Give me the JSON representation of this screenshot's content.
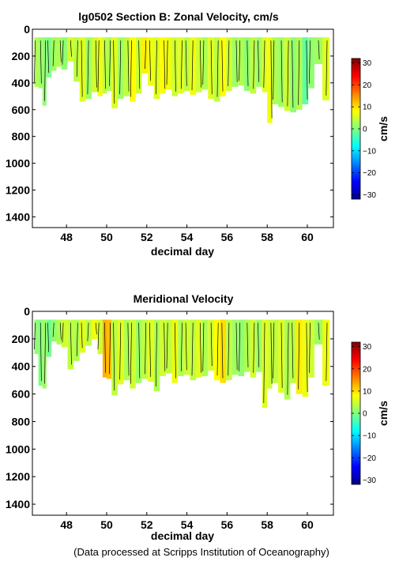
{
  "footer": "(Data processed at Scripps Institution of Oceanography)",
  "chart_data": [
    {
      "type": "heatmap",
      "title": "lg0502 Section B: Zonal Velocity, cm/s",
      "xlabel": "decimal day",
      "ylabel": "",
      "xlim": [
        46.3,
        61.3
      ],
      "ylim": [
        1480,
        0
      ],
      "xticks": [
        48,
        50,
        52,
        54,
        56,
        58,
        60
      ],
      "yticks": [
        0,
        200,
        400,
        600,
        800,
        1000,
        1200,
        1400
      ],
      "grid": false,
      "colorbar": {
        "label": "cm/s",
        "range": [
          -32,
          32
        ],
        "ticks": [
          -30,
          -20,
          -10,
          0,
          10,
          20,
          30
        ],
        "colormap": "jet"
      },
      "data_top_depth": 60,
      "profiles": [
        {
          "day": 46.5,
          "bottom": 430,
          "v": 3
        },
        {
          "day": 46.7,
          "bottom": 440,
          "v": 2
        },
        {
          "day": 46.9,
          "bottom": 570,
          "v": 1
        },
        {
          "day": 47.1,
          "bottom": 360,
          "v": 0
        },
        {
          "day": 47.4,
          "bottom": 310,
          "v": 2
        },
        {
          "day": 47.6,
          "bottom": 280,
          "v": 3
        },
        {
          "day": 47.9,
          "bottom": 300,
          "v": 1
        },
        {
          "day": 48.2,
          "bottom": 240,
          "v": 5
        },
        {
          "day": 48.5,
          "bottom": 390,
          "v": 4
        },
        {
          "day": 48.8,
          "bottom": 540,
          "v": 6
        },
        {
          "day": 49.1,
          "bottom": 520,
          "v": 2
        },
        {
          "day": 49.4,
          "bottom": 470,
          "v": 5
        },
        {
          "day": 49.7,
          "bottom": 500,
          "v": 7
        },
        {
          "day": 49.9,
          "bottom": 480,
          "v": 4
        },
        {
          "day": 50.1,
          "bottom": 460,
          "v": 3
        },
        {
          "day": 50.4,
          "bottom": 590,
          "v": 6
        },
        {
          "day": 50.7,
          "bottom": 520,
          "v": 2
        },
        {
          "day": 51.0,
          "bottom": 500,
          "v": 4
        },
        {
          "day": 51.3,
          "bottom": 540,
          "v": 8
        },
        {
          "day": 51.6,
          "bottom": 480,
          "v": 5
        },
        {
          "day": 51.9,
          "bottom": 330,
          "v": 9
        },
        {
          "day": 52.2,
          "bottom": 420,
          "v": 7
        },
        {
          "day": 52.5,
          "bottom": 520,
          "v": 6
        },
        {
          "day": 52.8,
          "bottom": 480,
          "v": 8
        },
        {
          "day": 53.1,
          "bottom": 450,
          "v": 7
        },
        {
          "day": 53.4,
          "bottom": 500,
          "v": 5
        },
        {
          "day": 53.7,
          "bottom": 480,
          "v": 6
        },
        {
          "day": 54.0,
          "bottom": 460,
          "v": 4
        },
        {
          "day": 54.3,
          "bottom": 490,
          "v": 7
        },
        {
          "day": 54.6,
          "bottom": 470,
          "v": 5
        },
        {
          "day": 54.9,
          "bottom": 450,
          "v": 3
        },
        {
          "day": 55.2,
          "bottom": 520,
          "v": 6
        },
        {
          "day": 55.5,
          "bottom": 540,
          "v": 4
        },
        {
          "day": 55.8,
          "bottom": 500,
          "v": 8
        },
        {
          "day": 56.1,
          "bottom": 460,
          "v": 5
        },
        {
          "day": 56.4,
          "bottom": 430,
          "v": 2
        },
        {
          "day": 56.7,
          "bottom": 420,
          "v": 3
        },
        {
          "day": 57.0,
          "bottom": 460,
          "v": 1
        },
        {
          "day": 57.3,
          "bottom": 480,
          "v": 4
        },
        {
          "day": 57.6,
          "bottom": 430,
          "v": 2
        },
        {
          "day": 57.9,
          "bottom": 470,
          "v": 6
        },
        {
          "day": 58.1,
          "bottom": 700,
          "v": 7
        },
        {
          "day": 58.4,
          "bottom": 560,
          "v": 3
        },
        {
          "day": 58.7,
          "bottom": 580,
          "v": 2
        },
        {
          "day": 59.0,
          "bottom": 610,
          "v": 5
        },
        {
          "day": 59.3,
          "bottom": 620,
          "v": 1
        },
        {
          "day": 59.6,
          "bottom": 600,
          "v": 3
        },
        {
          "day": 59.9,
          "bottom": 560,
          "v": -2
        },
        {
          "day": 60.2,
          "bottom": 440,
          "v": 1
        },
        {
          "day": 60.5,
          "bottom": 260,
          "v": 2
        },
        {
          "day": 61.0,
          "bottom": 530,
          "v": 6
        }
      ]
    },
    {
      "type": "heatmap",
      "title": "Meridional Velocity",
      "xlabel": "decimal day",
      "ylabel": "",
      "xlim": [
        46.3,
        61.3
      ],
      "ylim": [
        1480,
        0
      ],
      "xticks": [
        48,
        50,
        52,
        54,
        56,
        58,
        60
      ],
      "yticks": [
        0,
        200,
        400,
        600,
        800,
        1000,
        1200,
        1400
      ],
      "grid": false,
      "colorbar": {
        "label": "cm/s",
        "range": [
          -32,
          32
        ],
        "ticks": [
          -30,
          -20,
          -10,
          0,
          10,
          20,
          30
        ],
        "colormap": "jet"
      },
      "data_top_depth": 60,
      "profiles": [
        {
          "day": 46.5,
          "bottom": 310,
          "v": 1
        },
        {
          "day": 46.7,
          "bottom": 540,
          "v": 0
        },
        {
          "day": 46.9,
          "bottom": 560,
          "v": 2
        },
        {
          "day": 47.1,
          "bottom": 330,
          "v": -1
        },
        {
          "day": 47.4,
          "bottom": 220,
          "v": 1
        },
        {
          "day": 47.6,
          "bottom": 240,
          "v": 3
        },
        {
          "day": 47.9,
          "bottom": 260,
          "v": 5
        },
        {
          "day": 48.2,
          "bottom": 420,
          "v": 4
        },
        {
          "day": 48.5,
          "bottom": 360,
          "v": 3
        },
        {
          "day": 48.8,
          "bottom": 300,
          "v": 6
        },
        {
          "day": 49.1,
          "bottom": 250,
          "v": 4
        },
        {
          "day": 49.4,
          "bottom": 200,
          "v": 7
        },
        {
          "day": 49.7,
          "bottom": 310,
          "v": 5
        },
        {
          "day": 49.9,
          "bottom": 480,
          "v": 13
        },
        {
          "day": 50.1,
          "bottom": 490,
          "v": 12
        },
        {
          "day": 50.4,
          "bottom": 610,
          "v": 4
        },
        {
          "day": 50.7,
          "bottom": 530,
          "v": 6
        },
        {
          "day": 51.0,
          "bottom": 500,
          "v": 3
        },
        {
          "day": 51.3,
          "bottom": 560,
          "v": 5
        },
        {
          "day": 51.6,
          "bottom": 520,
          "v": 2
        },
        {
          "day": 51.9,
          "bottom": 490,
          "v": 4
        },
        {
          "day": 52.2,
          "bottom": 510,
          "v": 6
        },
        {
          "day": 52.5,
          "bottom": 580,
          "v": 3
        },
        {
          "day": 52.8,
          "bottom": 470,
          "v": 5
        },
        {
          "day": 53.1,
          "bottom": 450,
          "v": 4
        },
        {
          "day": 53.4,
          "bottom": 520,
          "v": 7
        },
        {
          "day": 53.7,
          "bottom": 470,
          "v": 3
        },
        {
          "day": 54.0,
          "bottom": 460,
          "v": 5
        },
        {
          "day": 54.3,
          "bottom": 500,
          "v": 4
        },
        {
          "day": 54.6,
          "bottom": 480,
          "v": 6
        },
        {
          "day": 54.9,
          "bottom": 470,
          "v": 3
        },
        {
          "day": 55.2,
          "bottom": 430,
          "v": 5
        },
        {
          "day": 55.5,
          "bottom": 500,
          "v": 8
        },
        {
          "day": 55.8,
          "bottom": 520,
          "v": 10
        },
        {
          "day": 56.1,
          "bottom": 500,
          "v": 4
        },
        {
          "day": 56.4,
          "bottom": 460,
          "v": 2
        },
        {
          "day": 56.7,
          "bottom": 470,
          "v": 1
        },
        {
          "day": 57.0,
          "bottom": 440,
          "v": 3
        },
        {
          "day": 57.3,
          "bottom": 480,
          "v": 5
        },
        {
          "day": 57.6,
          "bottom": 440,
          "v": 2
        },
        {
          "day": 57.9,
          "bottom": 700,
          "v": 6
        },
        {
          "day": 58.1,
          "bottom": 560,
          "v": 5
        },
        {
          "day": 58.4,
          "bottom": 520,
          "v": 4
        },
        {
          "day": 58.7,
          "bottom": 590,
          "v": 6
        },
        {
          "day": 59.0,
          "bottom": 640,
          "v": 3
        },
        {
          "day": 59.3,
          "bottom": 520,
          "v": 4
        },
        {
          "day": 59.6,
          "bottom": 600,
          "v": 9
        },
        {
          "day": 59.9,
          "bottom": 620,
          "v": 7
        },
        {
          "day": 60.2,
          "bottom": 480,
          "v": 5
        },
        {
          "day": 60.5,
          "bottom": 240,
          "v": 2
        },
        {
          "day": 61.0,
          "bottom": 540,
          "v": 7
        }
      ]
    }
  ]
}
